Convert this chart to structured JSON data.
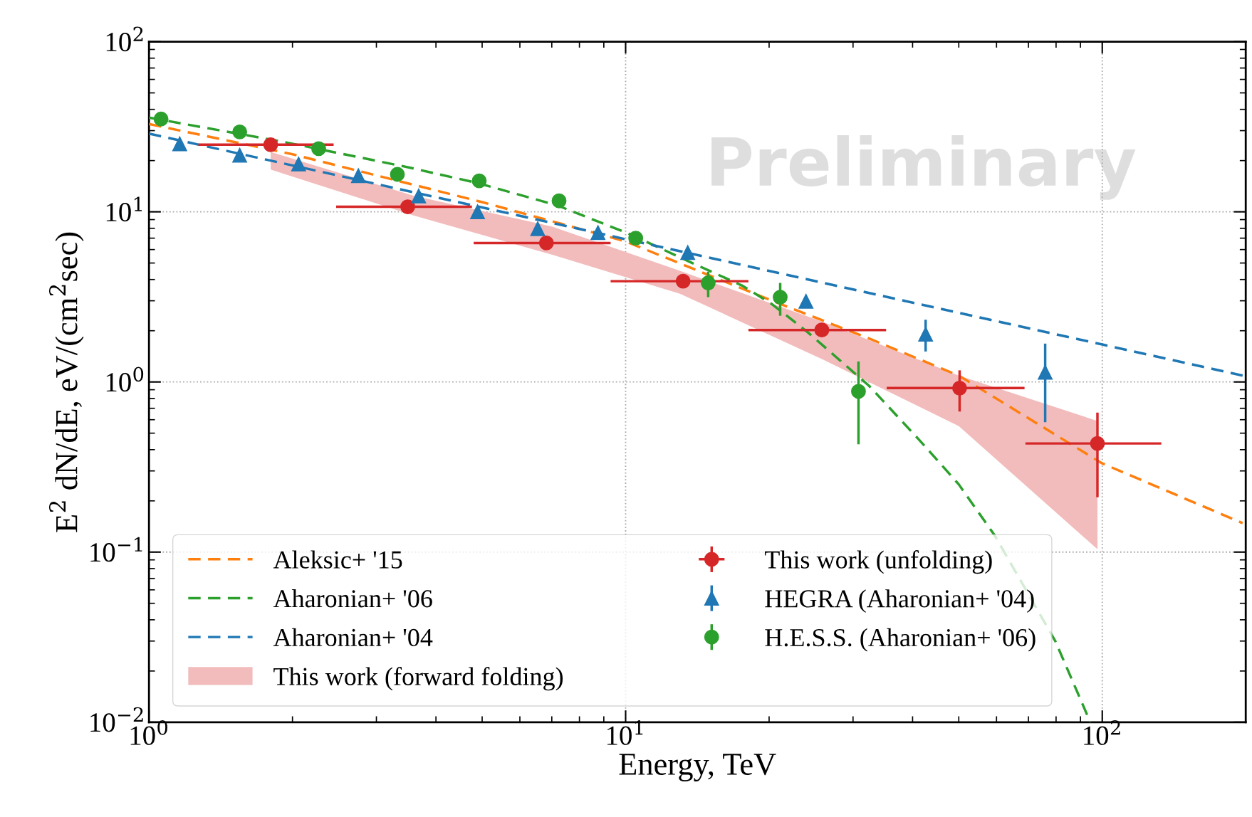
{
  "chart_data": {
    "type": "scatter",
    "xlabel": "Energy, TeV",
    "ylabel": "E$^{2}$ dN/dE, eV/(cm$^{2}$sec)",
    "log": "xy",
    "grid": true,
    "legend": "bottom",
    "xlim": [
      1,
      200
    ],
    "ylim": [
      0.01,
      100
    ],
    "xticks": [
      {
        "value": 1,
        "label": "10$^{0}$"
      },
      {
        "value": 10,
        "label": "10$^{1}$"
      },
      {
        "value": 100,
        "label": "10$^{2}$"
      }
    ],
    "yticks": [
      {
        "value": 0.01,
        "label": "10$^{−2}$"
      },
      {
        "value": 0.1,
        "label": "10$^{−1}$"
      },
      {
        "value": 1,
        "label": "10$^{0}$"
      },
      {
        "value": 10,
        "label": "10$^{1}$"
      },
      {
        "value": 100,
        "label": "10$^{2}$"
      }
    ],
    "annotations": [
      "Preliminary"
    ],
    "series": [
      {
        "name": "Aleksic+ '15",
        "type": "line",
        "color": "#ff7f0e",
        "line_style": "dashed",
        "marker": "none",
        "x": [
          1,
          2,
          5,
          10,
          20,
          32.9,
          50,
          100,
          197
        ],
        "values": [
          32.8,
          21.8,
          11.4,
          6.7,
          3.05,
          1.77,
          1.09,
          0.332,
          0.148
        ]
      },
      {
        "name": "Aharonian+ '06",
        "type": "line",
        "color": "#2ca02c",
        "line_style": "dashed",
        "marker": "none",
        "x": [
          1,
          1.91,
          3.52,
          4.92,
          7.19,
          10.2,
          13.8,
          17.6,
          20.3,
          24.1,
          32.4,
          41.2,
          50.0,
          59.4,
          79.7,
          94.4
        ],
        "values": [
          35.8,
          25.8,
          18.2,
          14.7,
          10.9,
          7.4,
          5.0,
          3.67,
          2.86,
          1.96,
          0.95,
          0.46,
          0.25,
          0.126,
          0.03,
          0.01
        ]
      },
      {
        "name": "Aharonian+ '04",
        "type": "line",
        "color": "#1f77b4",
        "line_style": "dashed",
        "marker": "none",
        "x": [
          1,
          10,
          100,
          197
        ],
        "values": [
          28.8,
          6.9,
          1.66,
          1.09
        ]
      },
      {
        "name": "This work (forward folding)",
        "type": "line",
        "color": "#f2bcbc",
        "x": [
          1.8,
          3.6,
          7,
          13,
          26,
          50,
          97.7
        ],
        "values": [
          null,
          null,
          null,
          null,
          null,
          null,
          null
        ],
        "upper": [
          22.5,
          12.4,
          8.2,
          4.5,
          2.25,
          1.09,
          0.59
        ],
        "lower": [
          17.7,
          9.5,
          5.6,
          3.3,
          1.35,
          0.55,
          0.104
        ]
      },
      {
        "name": "This work (unfolding)",
        "color": "#d62728",
        "marker": "circle",
        "x": [
          1.8,
          3.49,
          6.82,
          13.2,
          25.8,
          50.2,
          97.7
        ],
        "values": [
          24.8,
          10.7,
          6.56,
          3.91,
          2.02,
          0.92,
          0.435
        ],
        "xerrors": [
          [
            1.27,
            2.44
          ],
          [
            2.47,
            4.76
          ],
          [
            4.8,
            9.3
          ],
          [
            9.3,
            18.1
          ],
          [
            18.1,
            35.2
          ],
          [
            35.3,
            68.7
          ],
          [
            69,
            133
          ]
        ],
        "errors": [
          null,
          null,
          null,
          null,
          null,
          [
            0.67,
            1.17
          ],
          [
            0.21,
            0.66
          ]
        ]
      },
      {
        "name": "HEGRA (Aharonian+ '04)",
        "color": "#1f77b4",
        "marker": "triangle",
        "x": [
          1.16,
          1.55,
          2.06,
          2.75,
          3.68,
          4.89,
          6.54,
          8.75,
          13.5,
          23.9,
          42.6,
          75.9
        ],
        "values": [
          25.1,
          21.5,
          19.1,
          16.3,
          12.4,
          10.0,
          7.96,
          7.55,
          5.77,
          2.98,
          1.91,
          1.14
        ],
        "errors": [
          null,
          null,
          null,
          null,
          null,
          null,
          null,
          null,
          null,
          null,
          [
            1.51,
            2.32
          ],
          [
            0.58,
            1.68
          ]
        ]
      },
      {
        "name": "H.E.S.S. (Aharonian+ '06)",
        "color": "#2ca02c",
        "marker": "circle",
        "x": [
          1.06,
          1.55,
          2.27,
          3.32,
          4.93,
          7.25,
          10.5,
          14.9,
          21.1,
          30.8
        ],
        "values": [
          35.1,
          29.5,
          23.5,
          16.6,
          15.2,
          11.6,
          7.0,
          3.82,
          3.15,
          0.88
        ],
        "errors": [
          null,
          null,
          null,
          null,
          null,
          null,
          null,
          [
            3.15,
            4.45
          ],
          [
            2.45,
            3.82
          ],
          [
            0.43,
            1.32
          ]
        ]
      }
    ]
  }
}
